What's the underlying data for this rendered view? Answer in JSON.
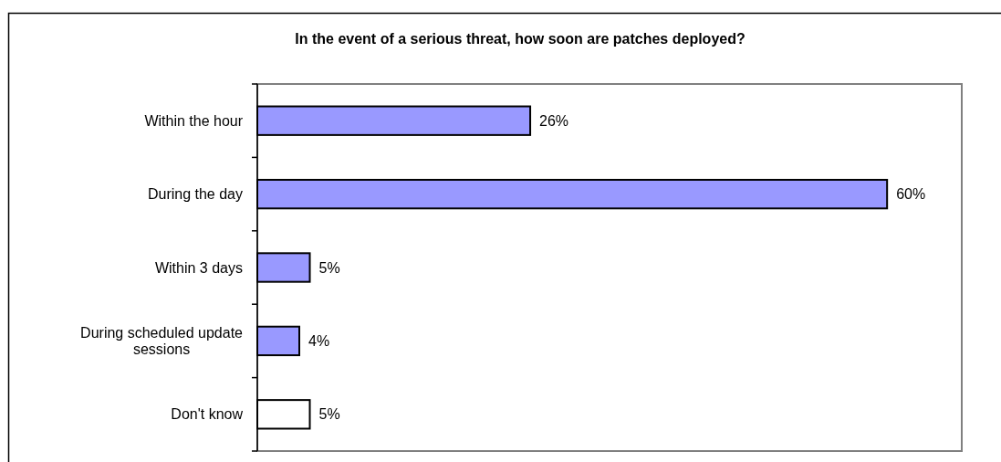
{
  "chart_data": {
    "type": "bar",
    "orientation": "horizontal",
    "title": "In the event of a serious threat, how soon are patches deployed?",
    "categories": [
      "Within the hour",
      "During the day",
      "Within 3 days",
      "During scheduled update sessions",
      "Don't know"
    ],
    "values": [
      26,
      60,
      5,
      4,
      5
    ],
    "colors": [
      "#9999ff",
      "#9999ff",
      "#9999ff",
      "#9999ff",
      "#ffffff"
    ],
    "value_labels": [
      "26%",
      "60%",
      "5%",
      "4%",
      "5%"
    ],
    "tick_labels": "y"
  }
}
